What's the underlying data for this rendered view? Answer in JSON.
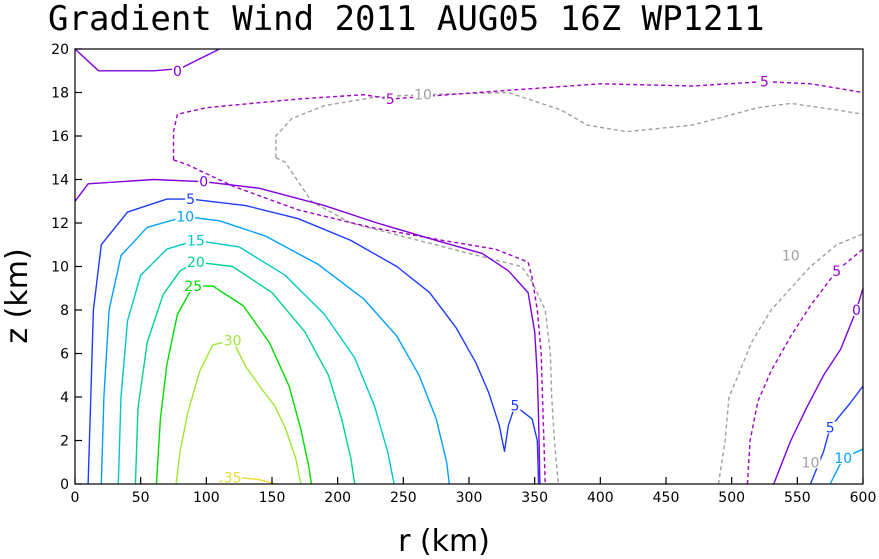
{
  "chart_data": {
    "type": "contour",
    "title": "Gradient Wind 2011 AUG05 16Z  WP1211",
    "xlabel": "r (km)",
    "ylabel": "z (km)",
    "xlim": [
      0,
      600
    ],
    "ylim": [
      0,
      20
    ],
    "xticks": [
      "0",
      "50",
      "100",
      "150",
      "200",
      "250",
      "300",
      "350",
      "400",
      "450",
      "500",
      "550",
      "600"
    ],
    "yticks": [
      "0",
      "2",
      "4",
      "6",
      "8",
      "10",
      "12",
      "14",
      "16",
      "18",
      "20"
    ],
    "grid": false,
    "legend": "none",
    "colors": {
      "m10": "#a0a0a0",
      "m5": "#a000c8",
      "c0": "#8200dc",
      "c5": "#1e3cff",
      "c10": "#00a0ff",
      "c15": "#00c8c8",
      "c20": "#00d28c",
      "c25": "#00dc00",
      "c30": "#a0e632",
      "c35": "#e6dc32"
    },
    "contours": [
      {
        "level": -10,
        "label": "10",
        "color_key": "m10",
        "dashed": true,
        "labels_at": [
          [
            265,
            17.9
          ],
          [
            560,
            1.0
          ],
          [
            545,
            10.5
          ]
        ],
        "paths": [
          [
            [
              153,
              15.0
            ],
            [
              153,
              16.0
            ],
            [
              165,
              16.8
            ],
            [
              190,
              17.4
            ],
            [
              230,
              17.8
            ],
            [
              265,
              17.9
            ],
            [
              330,
              18.0
            ],
            [
              370,
              17.2
            ],
            [
              390,
              16.5
            ],
            [
              420,
              16.2
            ],
            [
              470,
              16.5
            ],
            [
              520,
              17.3
            ],
            [
              545,
              17.5
            ],
            [
              580,
              17.2
            ],
            [
              600,
              17.0
            ]
          ],
          [
            [
              153,
              15.0
            ],
            [
              160,
              14.8
            ],
            [
              180,
              13.0
            ],
            [
              210,
              12.0
            ],
            [
              300,
              10.6
            ],
            [
              340,
              10.0
            ],
            [
              348,
              9.3
            ],
            [
              358,
              8.0
            ],
            [
              362,
              6.0
            ],
            [
              363,
              4.0
            ],
            [
              365,
              2.0
            ],
            [
              368,
              0.0
            ]
          ],
          [
            [
              490,
              0.0
            ],
            [
              495,
              2.0
            ],
            [
              498,
              4.0
            ],
            [
              505,
              5.0
            ],
            [
              515,
              6.5
            ],
            [
              530,
              8.0
            ],
            [
              545,
              9.0
            ],
            [
              560,
              10.0
            ],
            [
              580,
              11.0
            ],
            [
              600,
              11.5
            ]
          ]
        ]
      },
      {
        "level": -5,
        "label": "5",
        "color_key": "m5",
        "dashed": true,
        "labels_at": [
          [
            240,
            17.7
          ],
          [
            525,
            18.5
          ],
          [
            580,
            9.8
          ]
        ],
        "paths": [
          [
            [
              75,
              14.9
            ],
            [
              75,
              16.2
            ],
            [
              78,
              17.0
            ],
            [
              100,
              17.3
            ],
            [
              170,
              17.7
            ],
            [
              220,
              17.9
            ],
            [
              240,
              17.7
            ],
            [
              330,
              18.1
            ],
            [
              400,
              18.4
            ],
            [
              470,
              18.3
            ],
            [
              525,
              18.5
            ],
            [
              560,
              18.4
            ],
            [
              600,
              18.0
            ]
          ],
          [
            [
              75,
              14.9
            ],
            [
              85,
              14.7
            ],
            [
              120,
              13.7
            ],
            [
              170,
              12.6
            ],
            [
              225,
              11.8
            ],
            [
              280,
              11.2
            ],
            [
              320,
              10.8
            ],
            [
              345,
              10.2
            ],
            [
              348,
              9.5
            ],
            [
              352,
              8.0
            ],
            [
              355,
              6.0
            ],
            [
              356,
              4.0
            ],
            [
              357,
              2.0
            ],
            [
              358,
              0.0
            ]
          ],
          [
            [
              512,
              0.0
            ],
            [
              514,
              2.0
            ],
            [
              520,
              3.8
            ],
            [
              530,
              5.2
            ],
            [
              545,
              6.8
            ],
            [
              560,
              8.2
            ],
            [
              580,
              9.8
            ],
            [
              600,
              10.8
            ]
          ]
        ]
      },
      {
        "level": 0,
        "label": "0",
        "color_key": "c0",
        "dashed": false,
        "labels_at": [
          [
            78,
            19.0
          ],
          [
            98,
            13.9
          ],
          [
            595,
            8.0
          ]
        ],
        "paths": [
          [
            [
              0,
              20.0
            ],
            [
              18,
              19.0
            ],
            [
              60,
              19.0
            ],
            [
              80,
              19.1
            ],
            [
              110,
              20.0
            ]
          ],
          [
            [
              0,
              13.0
            ],
            [
              10,
              13.8
            ],
            [
              60,
              14.0
            ],
            [
              98,
              13.9
            ],
            [
              140,
              13.6
            ],
            [
              190,
              12.8
            ],
            [
              230,
              12.0
            ],
            [
              275,
              11.2
            ],
            [
              310,
              10.6
            ],
            [
              330,
              9.8
            ],
            [
              345,
              8.8
            ],
            [
              350,
              7.0
            ],
            [
              352,
              5.0
            ],
            [
              353,
              3.0
            ],
            [
              354,
              0.0
            ]
          ],
          [
            [
              532,
              0.0
            ],
            [
              545,
              2.0
            ],
            [
              557,
              3.5
            ],
            [
              570,
              5.0
            ],
            [
              583,
              6.2
            ],
            [
              595,
              8.0
            ],
            [
              600,
              9.0
            ]
          ]
        ]
      },
      {
        "level": 5,
        "label": "5",
        "color_key": "c5",
        "dashed": false,
        "labels_at": [
          [
            88,
            13.1
          ],
          [
            335,
            3.6
          ],
          [
            575,
            2.6
          ]
        ],
        "paths": [
          [
            [
              10,
              0.0
            ],
            [
              12,
              4.0
            ],
            [
              14,
              8.0
            ],
            [
              20,
              11.0
            ],
            [
              40,
              12.5
            ],
            [
              70,
              13.1
            ],
            [
              88,
              13.1
            ],
            [
              130,
              12.8
            ],
            [
              170,
              12.2
            ],
            [
              210,
              11.2
            ],
            [
              245,
              10.0
            ],
            [
              270,
              8.8
            ],
            [
              290,
              7.2
            ],
            [
              305,
              5.6
            ],
            [
              315,
              4.2
            ],
            [
              323,
              2.7
            ],
            [
              327,
              1.5
            ],
            [
              330,
              2.7
            ],
            [
              335,
              3.6
            ],
            [
              348,
              3.0
            ],
            [
              352,
              2.0
            ],
            [
              353,
              0.0
            ]
          ],
          [
            [
              560,
              0.0
            ],
            [
              570,
              1.5
            ],
            [
              575,
              2.6
            ],
            [
              590,
              3.7
            ],
            [
              600,
              4.5
            ]
          ]
        ]
      },
      {
        "level": 10,
        "label": "10",
        "color_key": "c10",
        "dashed": false,
        "labels_at": [
          [
            84,
            12.3
          ],
          [
            585,
            1.2
          ]
        ],
        "paths": [
          [
            [
              20,
              0.0
            ],
            [
              22,
              4.0
            ],
            [
              26,
              8.0
            ],
            [
              35,
              10.5
            ],
            [
              55,
              11.8
            ],
            [
              84,
              12.3
            ],
            [
              110,
              12.1
            ],
            [
              145,
              11.4
            ],
            [
              185,
              10.1
            ],
            [
              220,
              8.5
            ],
            [
              245,
              6.8
            ],
            [
              262,
              5.0
            ],
            [
              275,
              3.0
            ],
            [
              283,
              1.0
            ],
            [
              285,
              0.0
            ]
          ],
          [
            [
              575,
              0.0
            ],
            [
              580,
              0.6
            ],
            [
              585,
              1.2
            ],
            [
              600,
              1.6
            ]
          ]
        ]
      },
      {
        "level": 15,
        "label": "15",
        "color_key": "c15",
        "dashed": false,
        "labels_at": [
          [
            92,
            11.2
          ]
        ],
        "paths": [
          [
            [
              33,
              0.0
            ],
            [
              35,
              4.0
            ],
            [
              40,
              7.5
            ],
            [
              50,
              9.6
            ],
            [
              70,
              10.8
            ],
            [
              92,
              11.2
            ],
            [
              125,
              10.9
            ],
            [
              160,
              9.6
            ],
            [
              190,
              7.8
            ],
            [
              213,
              5.8
            ],
            [
              228,
              3.6
            ],
            [
              238,
              1.5
            ],
            [
              243,
              0.0
            ]
          ]
        ]
      },
      {
        "level": 20,
        "label": "20",
        "color_key": "c20",
        "dashed": false,
        "labels_at": [
          [
            92,
            10.2
          ]
        ],
        "paths": [
          [
            [
              46,
              0.0
            ],
            [
              48,
              3.5
            ],
            [
              55,
              6.5
            ],
            [
              67,
              8.7
            ],
            [
              80,
              9.8
            ],
            [
              92,
              10.2
            ],
            [
              120,
              10.0
            ],
            [
              150,
              8.8
            ],
            [
              175,
              7.0
            ],
            [
              193,
              5.0
            ],
            [
              203,
              3.0
            ],
            [
              210,
              1.2
            ],
            [
              213,
              0.0
            ]
          ]
        ]
      },
      {
        "level": 25,
        "label": "25",
        "color_key": "c25",
        "dashed": false,
        "labels_at": [
          [
            90,
            9.1
          ]
        ],
        "paths": [
          [
            [
              62,
              0.0
            ],
            [
              65,
              3.0
            ],
            [
              70,
              5.5
            ],
            [
              78,
              7.8
            ],
            [
              90,
              9.1
            ],
            [
              105,
              9.1
            ],
            [
              128,
              8.2
            ],
            [
              148,
              6.5
            ],
            [
              163,
              4.5
            ],
            [
              172,
              2.5
            ],
            [
              178,
              0.8
            ],
            [
              180,
              0.0
            ]
          ]
        ]
      },
      {
        "level": 30,
        "label": "30",
        "color_key": "c30",
        "dashed": false,
        "labels_at": [
          [
            120,
            6.6
          ]
        ],
        "paths": [
          [
            [
              77,
              0.0
            ],
            [
              80,
              1.5
            ],
            [
              86,
              3.3
            ],
            [
              95,
              5.2
            ],
            [
              105,
              6.4
            ],
            [
              120,
              6.6
            ],
            [
              130,
              5.4
            ],
            [
              143,
              4.3
            ],
            [
              152,
              3.6
            ],
            [
              160,
              2.6
            ],
            [
              168,
              1.2
            ],
            [
              172,
              0.0
            ]
          ]
        ]
      },
      {
        "level": 35,
        "label": "35",
        "color_key": "c35",
        "dashed": false,
        "labels_at": [
          [
            120,
            0.3
          ]
        ],
        "paths": [
          [
            [
              110,
              0.1
            ],
            [
              125,
              0.3
            ],
            [
              140,
              0.2
            ],
            [
              153,
              0.0
            ]
          ]
        ]
      }
    ]
  }
}
